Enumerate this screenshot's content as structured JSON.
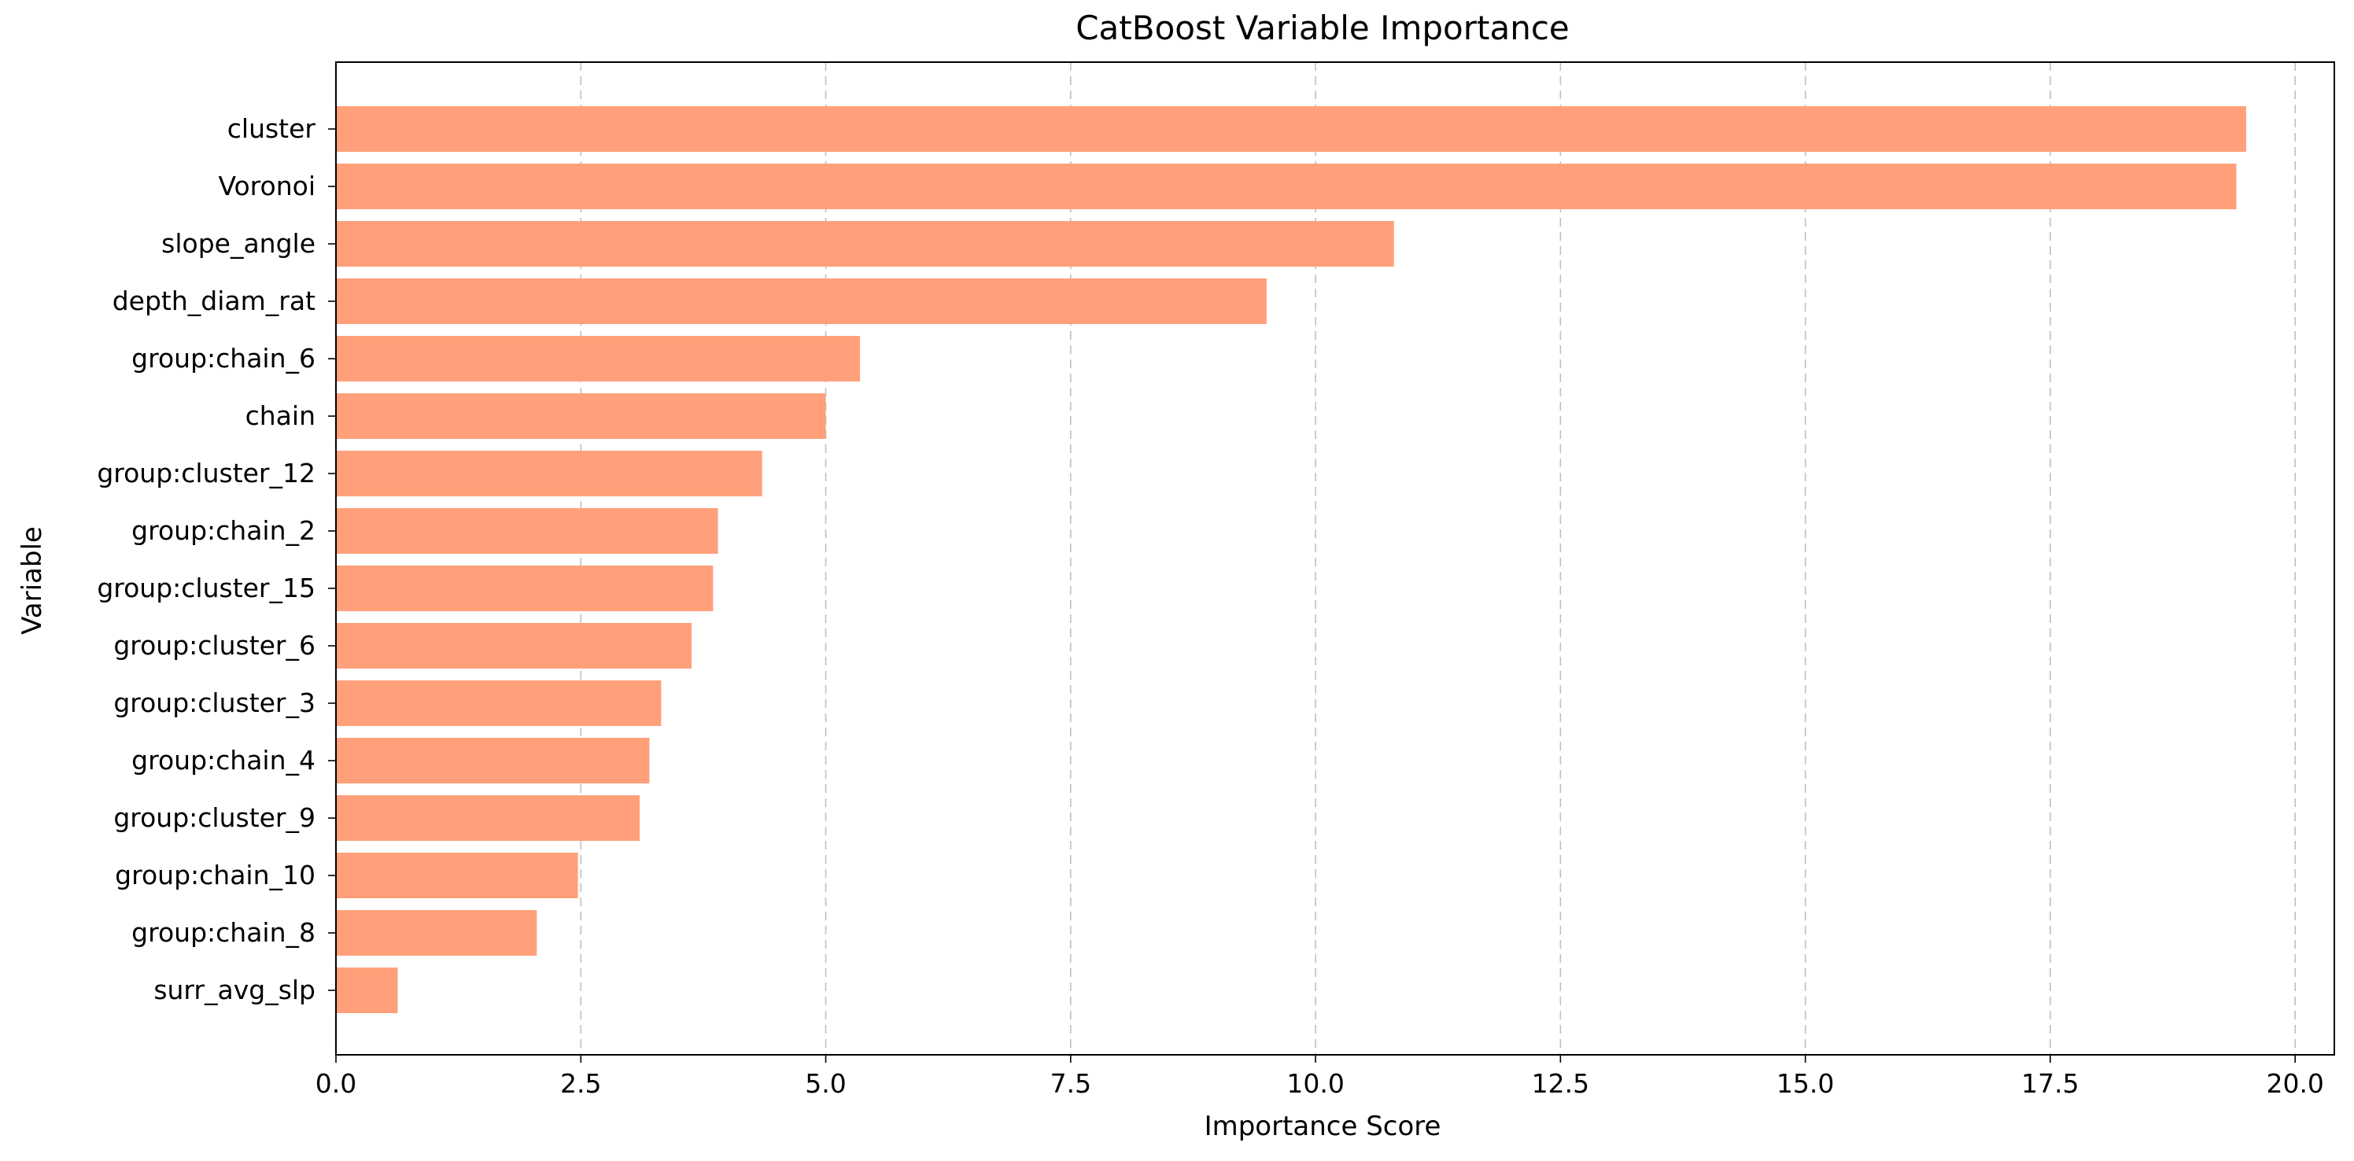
{
  "chart_data": {
    "type": "bar",
    "orientation": "horizontal",
    "title": "CatBoost Variable Importance",
    "xlabel": "Importance Score",
    "ylabel": "Variable",
    "categories": [
      "cluster",
      "Voronoi",
      "slope_angle",
      "depth_diam_rat",
      "group:chain_6",
      "chain",
      "group:cluster_12",
      "group:chain_2",
      "group:cluster_15",
      "group:cluster_6",
      "group:cluster_3",
      "group:chain_4",
      "group:cluster_9",
      "group:chain_10",
      "group:chain_8",
      "surr_avg_slp"
    ],
    "values": [
      19.5,
      19.4,
      10.8,
      9.5,
      5.35,
      5.0,
      4.35,
      3.9,
      3.85,
      3.63,
      3.32,
      3.2,
      3.1,
      2.47,
      2.05,
      0.63
    ],
    "xlim": [
      0,
      20.4
    ],
    "xticks": [
      0.0,
      2.5,
      5.0,
      7.5,
      10.0,
      12.5,
      15.0,
      17.5,
      20.0
    ],
    "xtick_labels": [
      "0.0",
      "2.5",
      "5.0",
      "7.5",
      "10.0",
      "12.5",
      "15.0",
      "17.5",
      "20.0"
    ],
    "grid": "x-dashed",
    "bar_color": "#ffa07a"
  }
}
